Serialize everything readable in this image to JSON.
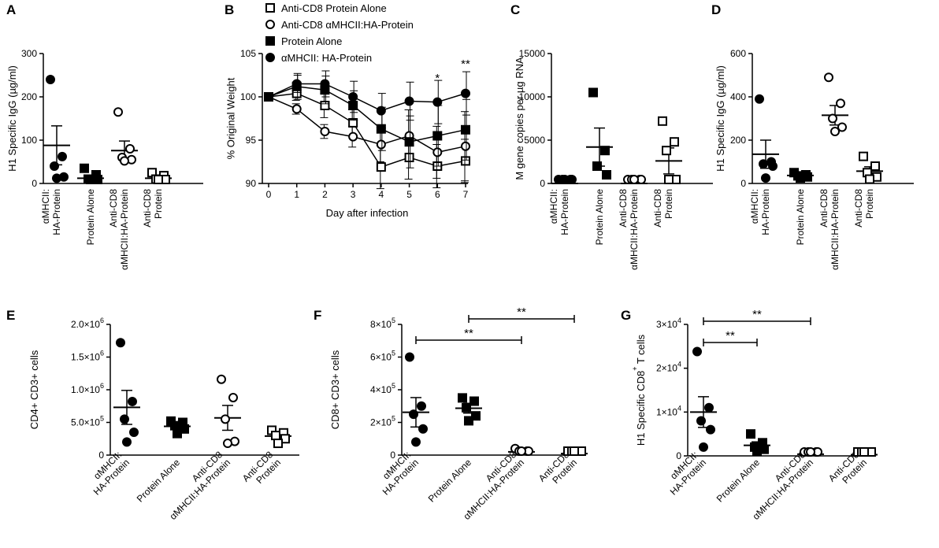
{
  "chart_data": [
    {
      "id": "A",
      "type": "scatter",
      "panel_label": "A",
      "ylabel": "H1 Specific IgG (µg/ml)",
      "ylim": [
        0,
        300
      ],
      "yticks": [
        0,
        100,
        200,
        300
      ],
      "categories": [
        "αMHCII:|HA-Protein",
        "Protein Alone",
        "Anti-CD8|αMHCII:HA-Protein",
        "Anti-CD8|Protein"
      ],
      "markers": [
        "filled-circle",
        "filled-square",
        "open-circle",
        "open-square"
      ],
      "points": [
        [
          240,
          62,
          40,
          15,
          12
        ],
        [
          35,
          20,
          10,
          5,
          2
        ],
        [
          165,
          80,
          60,
          55,
          52
        ],
        [
          25,
          18,
          10,
          5,
          2
        ]
      ],
      "means": [
        88,
        12,
        76,
        12
      ],
      "sems": [
        45,
        5,
        22,
        5
      ],
      "significance": []
    },
    {
      "id": "C",
      "type": "scatter",
      "panel_label": "C",
      "ylabel": "M gene copies per µg RNA",
      "ylim": [
        0,
        15000
      ],
      "yticks": [
        0,
        5000,
        10000,
        15000
      ],
      "categories": [
        "αMHCII:|HA-Protein",
        "Protein Alone",
        "Anti-CD8|αMHCII:HA-Protein",
        "Anti-CD8|Protein"
      ],
      "markers": [
        "filled-circle",
        "filled-square",
        "open-circle",
        "open-square"
      ],
      "points": [
        [
          0,
          0,
          0,
          0,
          0
        ],
        [
          10500,
          3800,
          2000,
          1000
        ],
        [
          0,
          0,
          0,
          0,
          0
        ],
        [
          7200,
          4800,
          3800,
          200,
          100
        ]
      ],
      "means": [
        0,
        4200,
        0,
        2600
      ],
      "sems": [
        0,
        2200,
        0,
        1500
      ],
      "significance": []
    },
    {
      "id": "D",
      "type": "scatter",
      "panel_label": "D",
      "ylabel": "H1 Specific IgG (µg/ml)",
      "ylim": [
        0,
        600
      ],
      "yticks": [
        0,
        200,
        400,
        600
      ],
      "categories": [
        "αMHCII:|HA-Protein",
        "Protein Alone",
        "Anti-CD8|αMHCII:HA-Protein",
        "Anti-CD8|Protein"
      ],
      "markers": [
        "filled-circle",
        "filled-square",
        "open-circle",
        "open-square"
      ],
      "points": [
        [
          390,
          100,
          90,
          80,
          25
        ],
        [
          50,
          40,
          35,
          30,
          25
        ],
        [
          490,
          370,
          300,
          260,
          240
        ],
        [
          125,
          80,
          50,
          30,
          20
        ]
      ],
      "means": [
        135,
        37,
        315,
        57
      ],
      "sems": [
        65,
        6,
        45,
        20
      ],
      "significance": []
    },
    {
      "id": "E",
      "type": "scatter",
      "panel_label": "E",
      "ylabel": "CD4+ CD3+ cells",
      "ylim": [
        0,
        2000000
      ],
      "yticks": [
        0,
        500000,
        1000000,
        1500000,
        2000000
      ],
      "ytick_labels": [
        "0",
        "5.0×10",
        "1.0×10",
        "1.5×10",
        "2.0×10"
      ],
      "ytick_exps": [
        "",
        "5",
        "6",
        "6",
        "6"
      ],
      "categories": [
        "αMHCII:|HA-Protein",
        "Protein Alone",
        "Anti-CD8|αMHCII:HA-Protein",
        "Anti-CD8|Protein"
      ],
      "markers": [
        "filled-circle",
        "filled-square",
        "open-circle",
        "open-square"
      ],
      "points": [
        [
          1720000,
          820000,
          550000,
          350000,
          200000
        ],
        [
          520000,
          500000,
          450000,
          400000,
          330000
        ],
        [
          1160000,
          880000,
          550000,
          210000,
          180000
        ],
        [
          380000,
          340000,
          300000,
          250000,
          180000
        ]
      ],
      "means": [
        730000,
        440000,
        570000,
        290000
      ],
      "sems": [
        260000,
        35000,
        190000,
        40000
      ],
      "significance": []
    },
    {
      "id": "F",
      "type": "scatter",
      "panel_label": "F",
      "ylabel": "CD8+ CD3+ cells",
      "ylim": [
        0,
        800000
      ],
      "yticks": [
        0,
        200000,
        400000,
        600000,
        800000
      ],
      "ytick_labels": [
        "0",
        "2×10",
        "4×10",
        "6×10",
        "8×10"
      ],
      "ytick_exps": [
        "",
        "5",
        "5",
        "5",
        "5"
      ],
      "categories": [
        "αMHCII:|HA-Protein",
        "Protein Alone",
        "Anti-CD8|αMHCII:HA-Protein",
        "Anti-CD8|Protein"
      ],
      "markers": [
        "filled-circle",
        "filled-square",
        "open-circle",
        "open-square"
      ],
      "points": [
        [
          600000,
          300000,
          250000,
          160000,
          80000
        ],
        [
          350000,
          330000,
          290000,
          240000,
          210000
        ],
        [
          40000,
          20000,
          15000,
          10000,
          10000
        ],
        [
          10000,
          10000,
          8000,
          8000,
          8000
        ]
      ],
      "means": [
        262000,
        287000,
        20000,
        9000
      ],
      "sems": [
        90000,
        30000,
        6000,
        1000
      ],
      "significance": [
        {
          "from": 0,
          "to": 2,
          "label": "**",
          "level": 0
        },
        {
          "from": 1,
          "to": 3,
          "label": "**",
          "level": 1
        }
      ]
    },
    {
      "id": "G",
      "type": "scatter",
      "panel_label": "G",
      "ylabel": "H1 Specific CD8",
      "ylabel_sup": "+",
      "ylabel_tail": " T cells",
      "ylim": [
        0,
        30000
      ],
      "yticks": [
        0,
        10000,
        20000,
        30000
      ],
      "ytick_labels": [
        "0",
        "1×10",
        "2×10",
        "3×10"
      ],
      "ytick_exps": [
        "",
        "4",
        "4",
        "4"
      ],
      "categories": [
        "αMHCII:|HA-Protein",
        "Protein Alone",
        "Anti-CD8|αMHCII:HA-Protein",
        "Anti-CD8|Protein"
      ],
      "markers": [
        "filled-circle",
        "filled-square",
        "open-circle",
        "open-square"
      ],
      "points": [
        [
          23800,
          11000,
          8000,
          6000,
          2000
        ],
        [
          5000,
          3000,
          2000,
          1500,
          1000
        ],
        [
          800,
          400,
          300,
          200,
          200
        ],
        [
          600,
          300,
          200,
          150,
          100
        ]
      ],
      "means": [
        10000,
        2400,
        380,
        270
      ],
      "sems": [
        3500,
        800,
        100,
        90
      ],
      "significance": [
        {
          "from": 0,
          "to": 2,
          "label": "**",
          "level": 1
        },
        {
          "from": 0,
          "to": 1,
          "label": "**",
          "level": 0
        }
      ]
    },
    {
      "id": "B",
      "type": "line",
      "panel_label": "B",
      "xlabel": "Day after infection",
      "ylabel": "% Original Weight",
      "x": [
        0,
        1,
        2,
        3,
        4,
        5,
        6,
        7
      ],
      "xlim": [
        0,
        7
      ],
      "ylim": [
        90,
        105
      ],
      "yticks": [
        90,
        95,
        100,
        105
      ],
      "legend_position": "top",
      "series": [
        {
          "name": "Anti-CD8 Protein Alone",
          "marker": "open-square",
          "values": [
            100,
            100.4,
            99,
            97,
            91.9,
            93,
            92,
            92.6
          ],
          "errors": [
            0,
            0.8,
            1.4,
            1.5,
            2.5,
            2.5,
            2.5,
            2.5
          ]
        },
        {
          "name": "Anti-CD8 αMHCII:HA-Protein",
          "marker": "open-circle",
          "values": [
            100,
            98.6,
            96,
            95.4,
            94.5,
            95.5,
            93.6,
            94.3
          ],
          "errors": [
            0,
            0.6,
            0.8,
            1.2,
            2,
            3,
            3,
            4
          ]
        },
        {
          "name": "Protein Alone",
          "marker": "filled-square",
          "values": [
            100,
            101.2,
            100.8,
            99,
            96.3,
            94.8,
            95.5,
            96.2
          ],
          "errors": [
            0,
            1.5,
            1.6,
            1.7,
            2.5,
            3,
            3.5,
            3.5
          ]
        },
        {
          "name": "αMHCII: HA-Protein",
          "marker": "filled-circle",
          "values": [
            100,
            101.5,
            101.5,
            100,
            98.4,
            99.5,
            99.4,
            100.4
          ],
          "errors": [
            0,
            1.0,
            1.5,
            1.8,
            2,
            2.2,
            2.5,
            2.5
          ]
        }
      ],
      "annotations": [
        {
          "x": 6,
          "label": "*"
        },
        {
          "x": 7,
          "label": "**"
        }
      ]
    }
  ]
}
